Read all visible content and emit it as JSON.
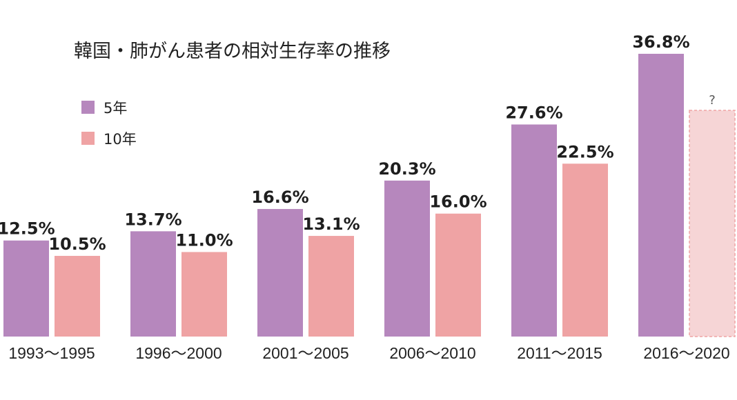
{
  "chart_data": {
    "type": "bar",
    "title": "韓国・肺がん患者の相対生存率の推移",
    "categories": [
      "1993～1995",
      "1996～2000",
      "2001～2005",
      "2006～2010",
      "2011～2015",
      "2016～2020"
    ],
    "series": [
      {
        "name": "5年",
        "color": "#b687bd",
        "values": [
          12.5,
          13.7,
          16.6,
          20.3,
          27.6,
          36.8
        ],
        "labels": [
          "12.5%",
          "13.7%",
          "16.6%",
          "20.3%",
          "27.6%",
          "36.8%"
        ]
      },
      {
        "name": "10年",
        "color": "#efa3a4",
        "values": [
          10.5,
          11.0,
          13.1,
          16.0,
          22.5,
          null
        ],
        "labels": [
          "10.5%",
          "11.0%",
          "13.1%",
          "16.0%",
          "22.5%",
          "?"
        ]
      }
    ],
    "ylim": [
      0,
      40
    ],
    "grid": false,
    "legend": "top-left",
    "pending_bar_color": "#f6d5d6",
    "pending_bar_border": "#efa3a4"
  }
}
